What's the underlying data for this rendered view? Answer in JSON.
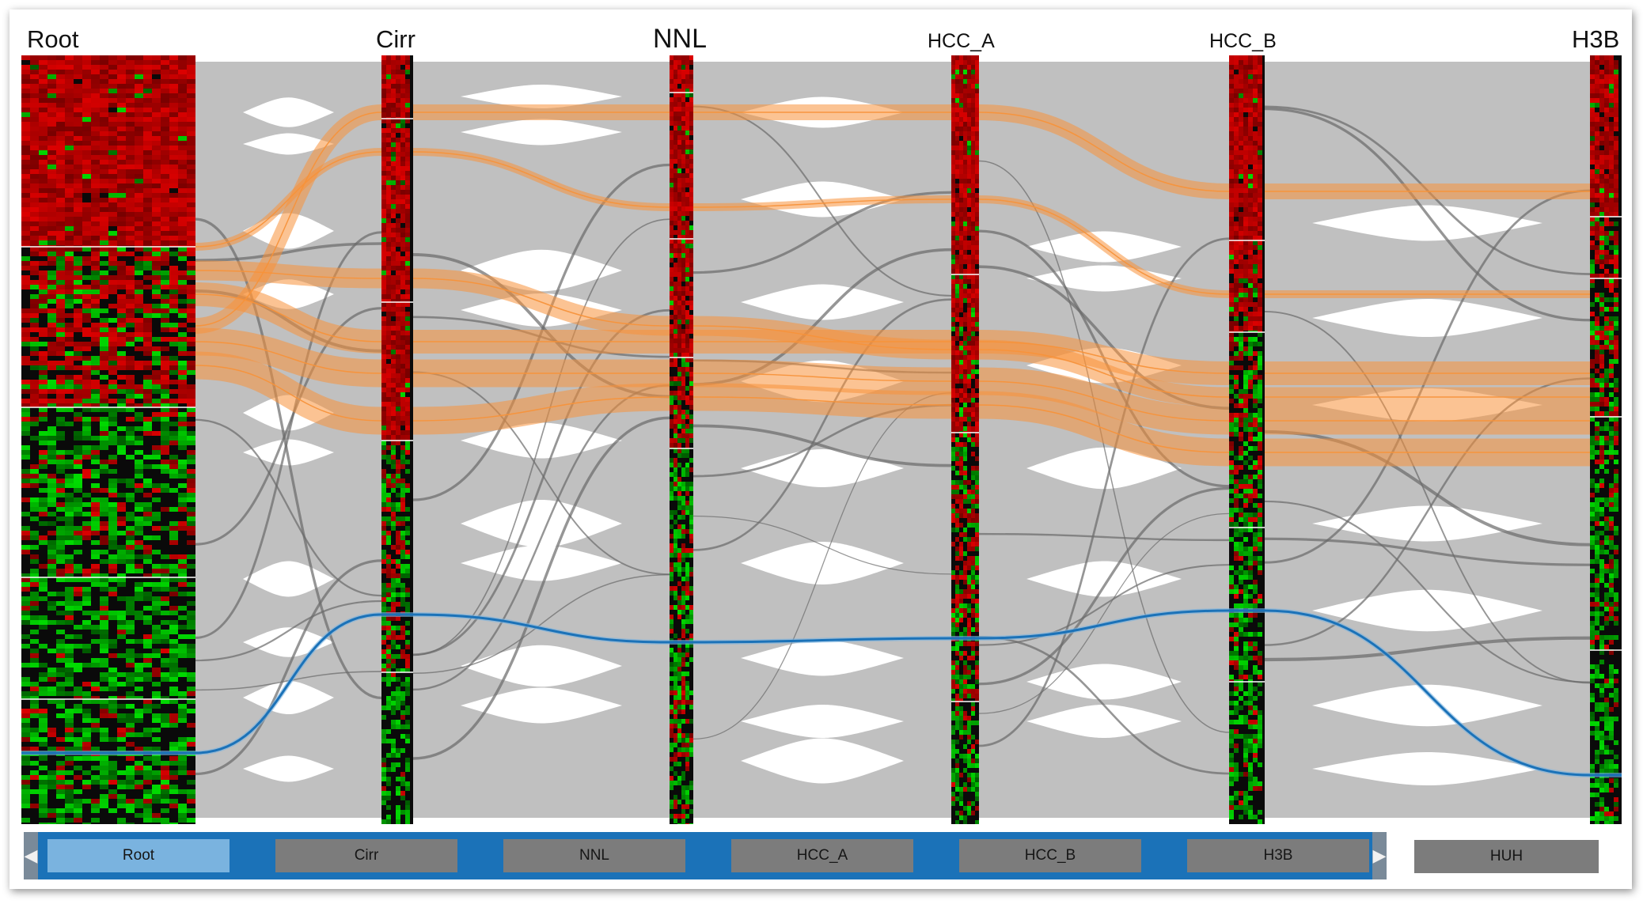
{
  "columns": [
    {
      "id": "root",
      "title": "Root"
    },
    {
      "id": "cirr",
      "title": "Cirr"
    },
    {
      "id": "nnl",
      "title": "NNL"
    },
    {
      "id": "hcca",
      "title": "HCC_A"
    },
    {
      "id": "hccb",
      "title": "HCC_B"
    },
    {
      "id": "h3b",
      "title": "H3B"
    }
  ],
  "navigation": {
    "tabs": [
      {
        "label": "Root",
        "active": true
      },
      {
        "label": "Cirr",
        "active": false
      },
      {
        "label": "NNL",
        "active": false
      },
      {
        "label": "HCC_A",
        "active": false
      },
      {
        "label": "HCC_B",
        "active": false
      },
      {
        "label": "H3B",
        "active": false
      }
    ],
    "left_arrow": "◀",
    "right_arrow": "▶",
    "extra_tab": {
      "label": "HUH"
    }
  },
  "colors": {
    "flow_gray": "#c0c0c0",
    "highlight_orange": "#f7923a",
    "highlight_blue": "#1b72b8",
    "heatmap_up": "#c00000",
    "heatmap_down": "#1ec01e",
    "nav_bar": "#1b72b8",
    "tab_active": "#7ab3df",
    "tab_inactive": "#7c7c7c"
  }
}
